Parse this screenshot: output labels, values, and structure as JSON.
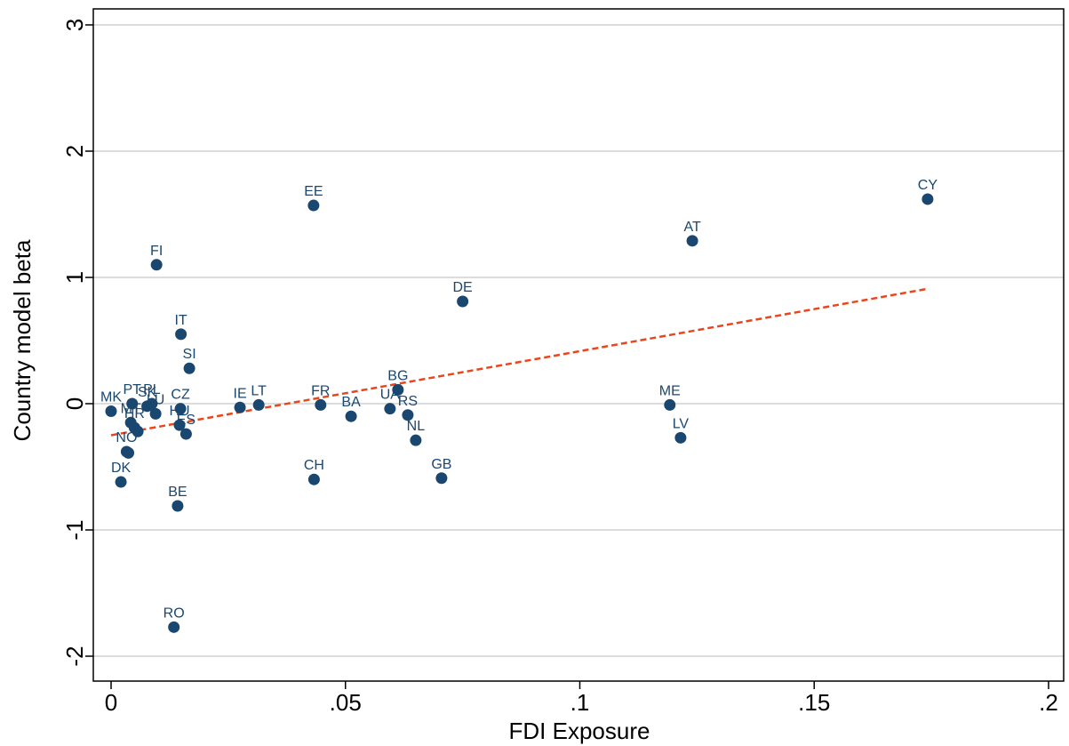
{
  "chart_data": {
    "type": "scatter",
    "title": "",
    "xlabel": "FDI Exposure",
    "ylabel": "Country model beta",
    "xlim": [
      0,
      0.2
    ],
    "ylim": [
      -2,
      3
    ],
    "x_ticks": [
      {
        "value": 0,
        "label": "0"
      },
      {
        "value": 0.05,
        "label": ".05"
      },
      {
        "value": 0.1,
        "label": ".1"
      },
      {
        "value": 0.15,
        "label": ".15"
      },
      {
        "value": 0.2,
        "label": ".2"
      }
    ],
    "y_ticks": [
      {
        "value": -2,
        "label": "-2"
      },
      {
        "value": -1,
        "label": "-1"
      },
      {
        "value": 0,
        "label": "0"
      },
      {
        "value": 1,
        "label": "1"
      },
      {
        "value": 2,
        "label": "2"
      },
      {
        "value": 3,
        "label": "3"
      }
    ],
    "grid": "horizontal",
    "points": [
      {
        "label": "MK",
        "x": 0.0,
        "y": -0.06
      },
      {
        "label": "DK",
        "x": 0.0021,
        "y": -0.62
      },
      {
        "label": "NO",
        "x": 0.0033,
        "y": -0.38
      },
      {
        "label": "",
        "x": 0.0037,
        "y": -0.39
      },
      {
        "label": "MT",
        "x": 0.0042,
        "y": -0.15
      },
      {
        "label": "PT",
        "x": 0.0045,
        "y": 0.0
      },
      {
        "label": "HR",
        "x": 0.005,
        "y": -0.19
      },
      {
        "label": "",
        "x": 0.0057,
        "y": -0.22
      },
      {
        "label": "SK",
        "x": 0.0077,
        "y": -0.02
      },
      {
        "label": "PL",
        "x": 0.0087,
        "y": 0.0
      },
      {
        "label": "LU",
        "x": 0.0095,
        "y": -0.08
      },
      {
        "label": "FI",
        "x": 0.0097,
        "y": 1.1
      },
      {
        "label": "RO",
        "x": 0.0134,
        "y": -1.77
      },
      {
        "label": "BE",
        "x": 0.0142,
        "y": -0.81
      },
      {
        "label": "HU",
        "x": 0.0146,
        "y": -0.17
      },
      {
        "label": "CZ",
        "x": 0.0148,
        "y": -0.04
      },
      {
        "label": "IT",
        "x": 0.0149,
        "y": 0.55
      },
      {
        "label": "ES",
        "x": 0.016,
        "y": -0.24
      },
      {
        "label": "SI",
        "x": 0.0167,
        "y": 0.28
      },
      {
        "label": "IE",
        "x": 0.0275,
        "y": -0.03
      },
      {
        "label": "LT",
        "x": 0.0315,
        "y": -0.01
      },
      {
        "label": "EE",
        "x": 0.0432,
        "y": 1.57
      },
      {
        "label": "CH",
        "x": 0.0433,
        "y": -0.6
      },
      {
        "label": "FR",
        "x": 0.0447,
        "y": -0.01
      },
      {
        "label": "BA",
        "x": 0.0512,
        "y": -0.1
      },
      {
        "label": "UA",
        "x": 0.0595,
        "y": -0.04
      },
      {
        "label": "BG",
        "x": 0.0612,
        "y": 0.11
      },
      {
        "label": "RS",
        "x": 0.0633,
        "y": -0.09
      },
      {
        "label": "NL",
        "x": 0.065,
        "y": -0.29
      },
      {
        "label": "GB",
        "x": 0.0705,
        "y": -0.59
      },
      {
        "label": "DE",
        "x": 0.075,
        "y": 0.81
      },
      {
        "label": "ME",
        "x": 0.1192,
        "y": -0.01
      },
      {
        "label": "LV",
        "x": 0.1215,
        "y": -0.27
      },
      {
        "label": "AT",
        "x": 0.124,
        "y": 1.29
      },
      {
        "label": "CY",
        "x": 0.1742,
        "y": 1.62
      }
    ],
    "fit_line": {
      "x": [
        0,
        0.1742
      ],
      "y": [
        -0.25,
        0.91
      ]
    },
    "colors": {
      "point": "#1a476f",
      "label": "#1a476f",
      "fit_line": "#e8471d",
      "grid": "#dcdcdc",
      "axis": "#000000"
    }
  }
}
